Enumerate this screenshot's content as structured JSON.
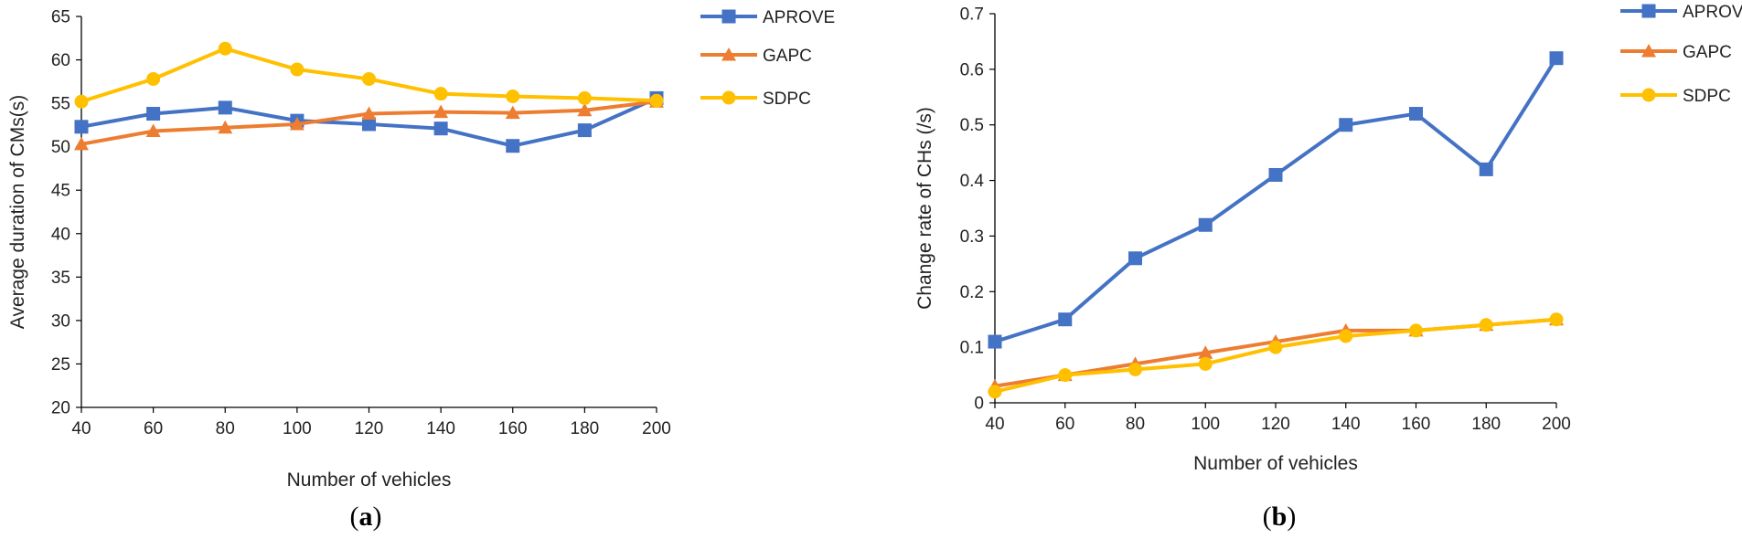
{
  "chart_data": [
    {
      "type": "line",
      "caption_open": "(",
      "caption_letter": "a",
      "caption_close": ")",
      "xlabel": "Number of vehicles",
      "ylabel": "Average duration of CMs(s)",
      "x": [
        40,
        60,
        80,
        100,
        120,
        140,
        160,
        180,
        200
      ],
      "xlim": [
        40,
        200
      ],
      "ylim": [
        20,
        65
      ],
      "yticks": [
        20,
        25,
        30,
        35,
        40,
        45,
        50,
        55,
        60,
        65
      ],
      "grid": false,
      "legend_position": "right",
      "series": [
        {
          "name": "APROVE",
          "marker": "square",
          "color": "#4472C4",
          "values": [
            52.3,
            53.8,
            54.5,
            53.0,
            52.6,
            52.1,
            50.1,
            51.9,
            55.6
          ]
        },
        {
          "name": "GAPC",
          "marker": "triangle",
          "color": "#ED7D31",
          "values": [
            50.3,
            51.8,
            52.2,
            52.6,
            53.8,
            54.0,
            53.9,
            54.2,
            55.2
          ]
        },
        {
          "name": "SDPC",
          "marker": "circle",
          "color": "#FFC000",
          "values": [
            55.2,
            57.8,
            61.3,
            58.9,
            57.8,
            56.1,
            55.8,
            55.6,
            55.3
          ]
        }
      ]
    },
    {
      "type": "line",
      "caption_open": "(",
      "caption_letter": "b",
      "caption_close": ")",
      "xlabel": "Number of vehicles",
      "ylabel": "Change rate of CHs (/s)",
      "x": [
        40,
        60,
        80,
        100,
        120,
        140,
        160,
        180,
        200
      ],
      "xlim": [
        40,
        200
      ],
      "ylim": [
        0,
        0.7
      ],
      "yticks": [
        0,
        0.1,
        0.2,
        0.3,
        0.4,
        0.5,
        0.6,
        0.7
      ],
      "grid": false,
      "legend_position": "right",
      "series": [
        {
          "name": "APROVE",
          "marker": "square",
          "color": "#4472C4",
          "values": [
            0.11,
            0.15,
            0.26,
            0.32,
            0.41,
            0.5,
            0.52,
            0.42,
            0.62
          ]
        },
        {
          "name": "GAPC",
          "marker": "triangle",
          "color": "#ED7D31",
          "values": [
            0.03,
            0.05,
            0.07,
            0.09,
            0.11,
            0.13,
            0.13,
            0.14,
            0.15
          ]
        },
        {
          "name": "SDPC",
          "marker": "circle",
          "color": "#FFC000",
          "values": [
            0.02,
            0.05,
            0.06,
            0.07,
            0.1,
            0.12,
            0.13,
            0.14,
            0.15
          ]
        }
      ]
    }
  ]
}
